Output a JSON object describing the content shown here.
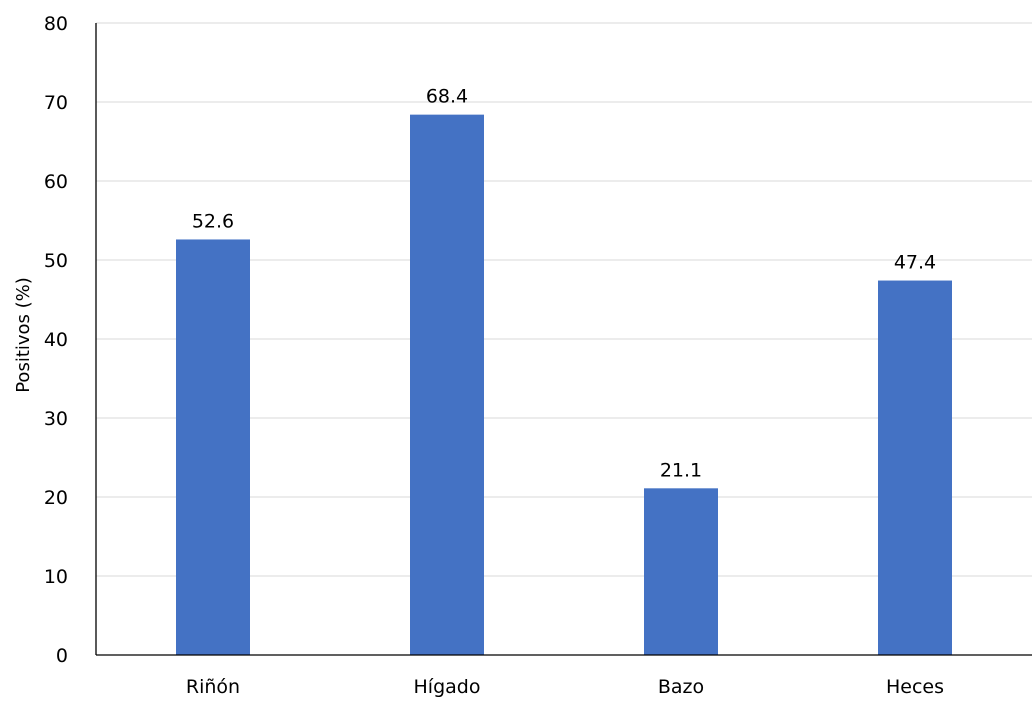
{
  "chart_data": {
    "type": "bar",
    "title": "",
    "xlabel": "",
    "ylabel": "Positivos (%)",
    "categories": [
      "Riñón",
      "Hígado",
      "Bazo",
      "Heces"
    ],
    "values": [
      52.6,
      68.4,
      21.1,
      47.4
    ],
    "data_labels": [
      "52.6",
      "68.4",
      "21.1",
      "47.4"
    ],
    "ylim": [
      0,
      80
    ],
    "yticks": [
      0,
      10,
      20,
      30,
      40,
      50,
      60,
      70,
      80
    ],
    "grid": true,
    "legend": "none",
    "bar_color": "#4472C4"
  }
}
